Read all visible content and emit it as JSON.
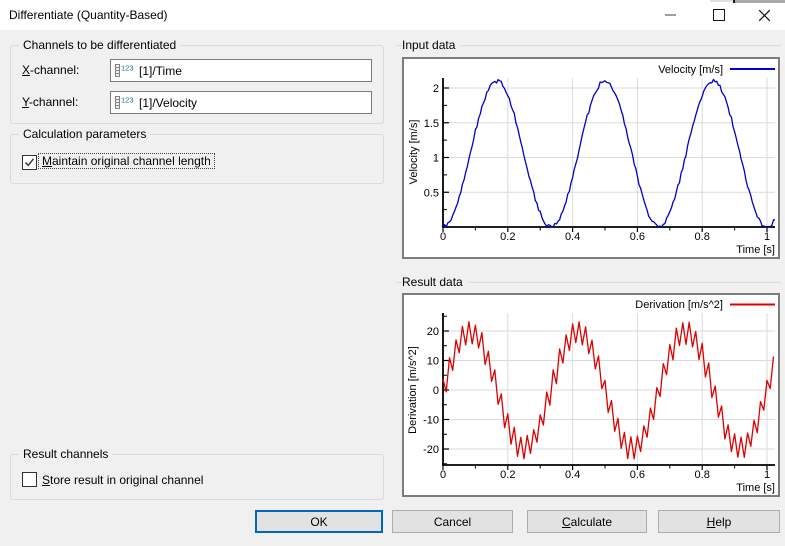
{
  "window": {
    "title": "Differentiate (Quantity-Based)"
  },
  "channels_group": {
    "label": "Channels to be differentiated",
    "x_channel": {
      "mnemonic": "X",
      "rest": "-channel:",
      "value": "[1]/Time",
      "icon": "numeric-channel-123-icon"
    },
    "y_channel": {
      "mnemonic": "Y",
      "rest": "-channel:",
      "value": "[1]/Velocity",
      "icon": "numeric-channel-123-icon"
    }
  },
  "calculation_group": {
    "label": "Calculation parameters",
    "maintain_length": {
      "mnemonic": "M",
      "rest": "aintain original channel length",
      "checked": true
    }
  },
  "result_group": {
    "label": "Result channels",
    "store_result": {
      "mnemonic": "S",
      "rest": "tore result in original channel",
      "checked": false
    }
  },
  "sections": {
    "input": "Input data",
    "result": "Result data"
  },
  "buttons": {
    "ok": {
      "label": "OK",
      "is_default": true
    },
    "cancel": {
      "label": "Cancel"
    },
    "calculate": {
      "mnemonic": "C",
      "rest": "alculate"
    },
    "help": {
      "mnemonic": "H",
      "rest": "elp"
    }
  },
  "colors": {
    "velocity_line": "#0000cc",
    "derivation_line": "#dd0000",
    "default_button_border": "#0067c0",
    "dialog_bg": "#f0f0f0",
    "titlebar_bg": "#ffffff"
  },
  "chart_data": [
    {
      "id": "input",
      "type": "line",
      "section_title": "Input data",
      "legend": "Velocity [m/s]",
      "legend_position": "top-right",
      "xlabel": "Time [s]",
      "ylabel": "Velocity [m/s]",
      "line_color": "#0000cc",
      "grid": true,
      "xlim": [
        0,
        1.025
      ],
      "ylim": [
        0,
        2.144
      ],
      "x_ticks": [
        0,
        0.2,
        0.4,
        0.6,
        0.8,
        1
      ],
      "x_tick_labels": [
        "0",
        "0.2",
        "0.4",
        "0.6",
        "0.8",
        "1"
      ],
      "x_minor_ticks": [
        0.1,
        0.3,
        0.5,
        0.7,
        0.9
      ],
      "y_ticks": [
        0.5,
        1,
        1.5,
        2
      ],
      "y_tick_labels": [
        "0.5",
        "1",
        "1.5",
        "2"
      ],
      "y_minor_ticks": [
        0.25,
        0.75,
        1.25,
        1.75
      ],
      "series": {
        "name": "Velocity [m/s]",
        "kind": "sin_squared",
        "amplitude": 2.1,
        "freq": 3,
        "t_start": 0,
        "t_end": 1.025,
        "dt": 0.005,
        "noise_amp": 0.03,
        "noise_mode": "random",
        "clip_min": 0.004,
        "description": "Velocity(t) ~= 2.1*sin^2(3*pi*t) m/s: three humps peaking ~2.1 m/s at t ~= 0.17, 0.5, 0.83 s, zeros at t = 0, 0.33, 0.67, 1.0 s, with slight measurement noise."
      }
    },
    {
      "id": "result",
      "type": "line",
      "section_title": "Result data",
      "legend": "Derivation [m/s^2]",
      "legend_position": "top-right",
      "xlabel": "Time [s]",
      "ylabel": "Derivation [m/s^2]",
      "line_color": "#dd0000",
      "grid": true,
      "xlim": [
        0,
        1.025
      ],
      "ylim": [
        -25.4,
        26.1
      ],
      "x_ticks": [
        0,
        0.2,
        0.4,
        0.6,
        0.8,
        1
      ],
      "x_tick_labels": [
        "0",
        "0.2",
        "0.4",
        "0.6",
        "0.8",
        "1"
      ],
      "x_minor_ticks": [
        0.1,
        0.3,
        0.5,
        0.7,
        0.9
      ],
      "y_ticks": [
        -20,
        -10,
        0,
        10,
        20
      ],
      "y_tick_labels": [
        "-20",
        "-10",
        "0",
        "10",
        "20"
      ],
      "y_minor_ticks": [
        -25,
        -15,
        -5,
        5,
        15,
        25
      ],
      "series": {
        "name": "Derivation [m/s^2]",
        "kind": "sine",
        "amplitude": 19.8,
        "freq": 3,
        "t_start": 0,
        "t_end": 1.025,
        "dt": 0.01,
        "noise_amp": 4.4,
        "noise_mode": "alternating",
        "description": "Derivation(t) ~= 19.8*sin(6*pi*t) m/s^2: sinusoid peaking ~+24 at t ~= 0.08, 0.42, 0.75 s and ~-24 at t ~= 0.25, 0.58, 0.92 s, overlaid with high-frequency alternating differentiation noise of ~+/-3.5."
      }
    }
  ]
}
